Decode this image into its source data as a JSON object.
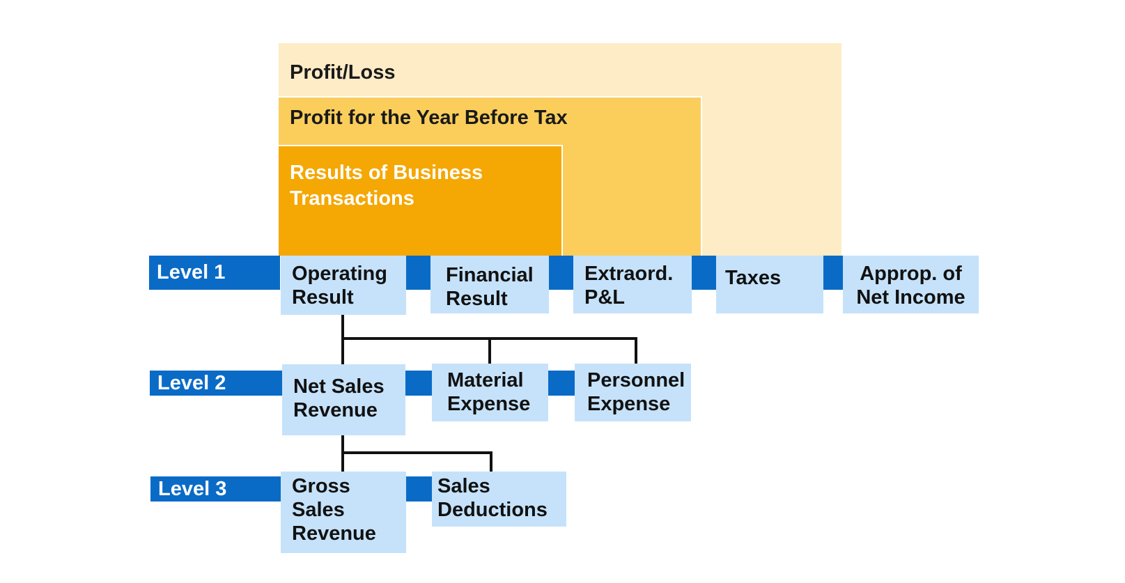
{
  "nested_bands": [
    {
      "id": "profit_loss",
      "title": "Profit/Loss",
      "color": "#fdecc6"
    },
    {
      "id": "profit_before_tax",
      "title": "Profit for the Year Before Tax",
      "color": "#fbce5c"
    },
    {
      "id": "results_business",
      "title": "Results of Business\nTransactions",
      "color": "#f5a703"
    }
  ],
  "levels": {
    "level1": {
      "label": "Level 1",
      "nodes": [
        "Operating\nResult",
        "Financial\nResult",
        "Extraord.\nP&L",
        "Taxes",
        "Approp. of\nNet Income"
      ]
    },
    "level2": {
      "label": "Level 2",
      "nodes": [
        "Net Sales\nRevenue",
        "Material\nExpense",
        "Personnel\nExpense"
      ]
    },
    "level3": {
      "label": "Level 3",
      "nodes": [
        "Gross\nSales\nRevenue",
        "Sales\nDeductions"
      ]
    }
  },
  "colors": {
    "level_bar": "#0a6bc7",
    "node_fill": "#c5e2fa",
    "connector_line": "#111111"
  }
}
